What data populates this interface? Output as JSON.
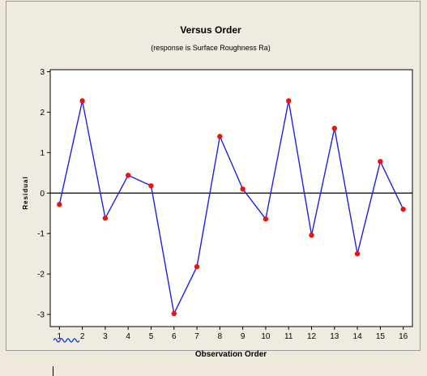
{
  "chart_data": {
    "type": "line",
    "title": "Versus Order",
    "subtitle": "(response is Surface Roughness Ra)",
    "xlabel": "Observation Order",
    "ylabel": "Residual",
    "x": [
      1,
      2,
      3,
      4,
      5,
      6,
      7,
      8,
      9,
      10,
      11,
      12,
      13,
      14,
      15,
      16
    ],
    "y": [
      -0.28,
      2.28,
      -0.62,
      0.44,
      0.18,
      -2.98,
      -1.82,
      1.4,
      0.1,
      -0.64,
      2.28,
      -1.04,
      1.6,
      -1.5,
      0.78,
      -0.4
    ],
    "xlim": [
      0.6,
      16.4
    ],
    "ylim": [
      -3.3,
      3.05
    ],
    "yticks": [
      -3,
      -2,
      -1,
      0,
      1,
      2,
      3
    ],
    "xticks": [
      1,
      2,
      3,
      4,
      5,
      6,
      7,
      8,
      9,
      10,
      11,
      12,
      13,
      14,
      15,
      16
    ],
    "reference_line": 0,
    "grid": false,
    "colors": {
      "line": "#1f1fe6",
      "point": "#ee1111",
      "reference": "#000000"
    }
  }
}
